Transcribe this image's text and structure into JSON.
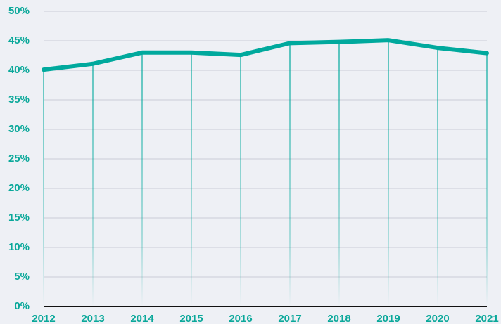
{
  "chart_data": {
    "type": "line",
    "categories": [
      "2012",
      "2013",
      "2014",
      "2015",
      "2016",
      "2017",
      "2018",
      "2019",
      "2020",
      "2021"
    ],
    "series": [
      {
        "color": "#00a99d",
        "values": [
          40.1,
          41.1,
          43.0,
          43.0,
          42.6,
          44.6,
          44.8,
          45.1,
          43.8,
          42.9
        ]
      }
    ],
    "ylim": [
      0,
      50
    ],
    "yticks": [
      {
        "value": 0,
        "label": "0%"
      },
      {
        "value": 5,
        "label": "5%"
      },
      {
        "value": 10,
        "label": "10%"
      },
      {
        "value": 15,
        "label": "15%"
      },
      {
        "value": 20,
        "label": "20%"
      },
      {
        "value": 25,
        "label": "25%"
      },
      {
        "value": 30,
        "label": "30%"
      },
      {
        "value": 35,
        "label": "35%"
      },
      {
        "value": 40,
        "label": "40%"
      },
      {
        "value": 45,
        "label": "45%"
      },
      {
        "value": 50,
        "label": "50%"
      }
    ],
    "grid": true
  }
}
